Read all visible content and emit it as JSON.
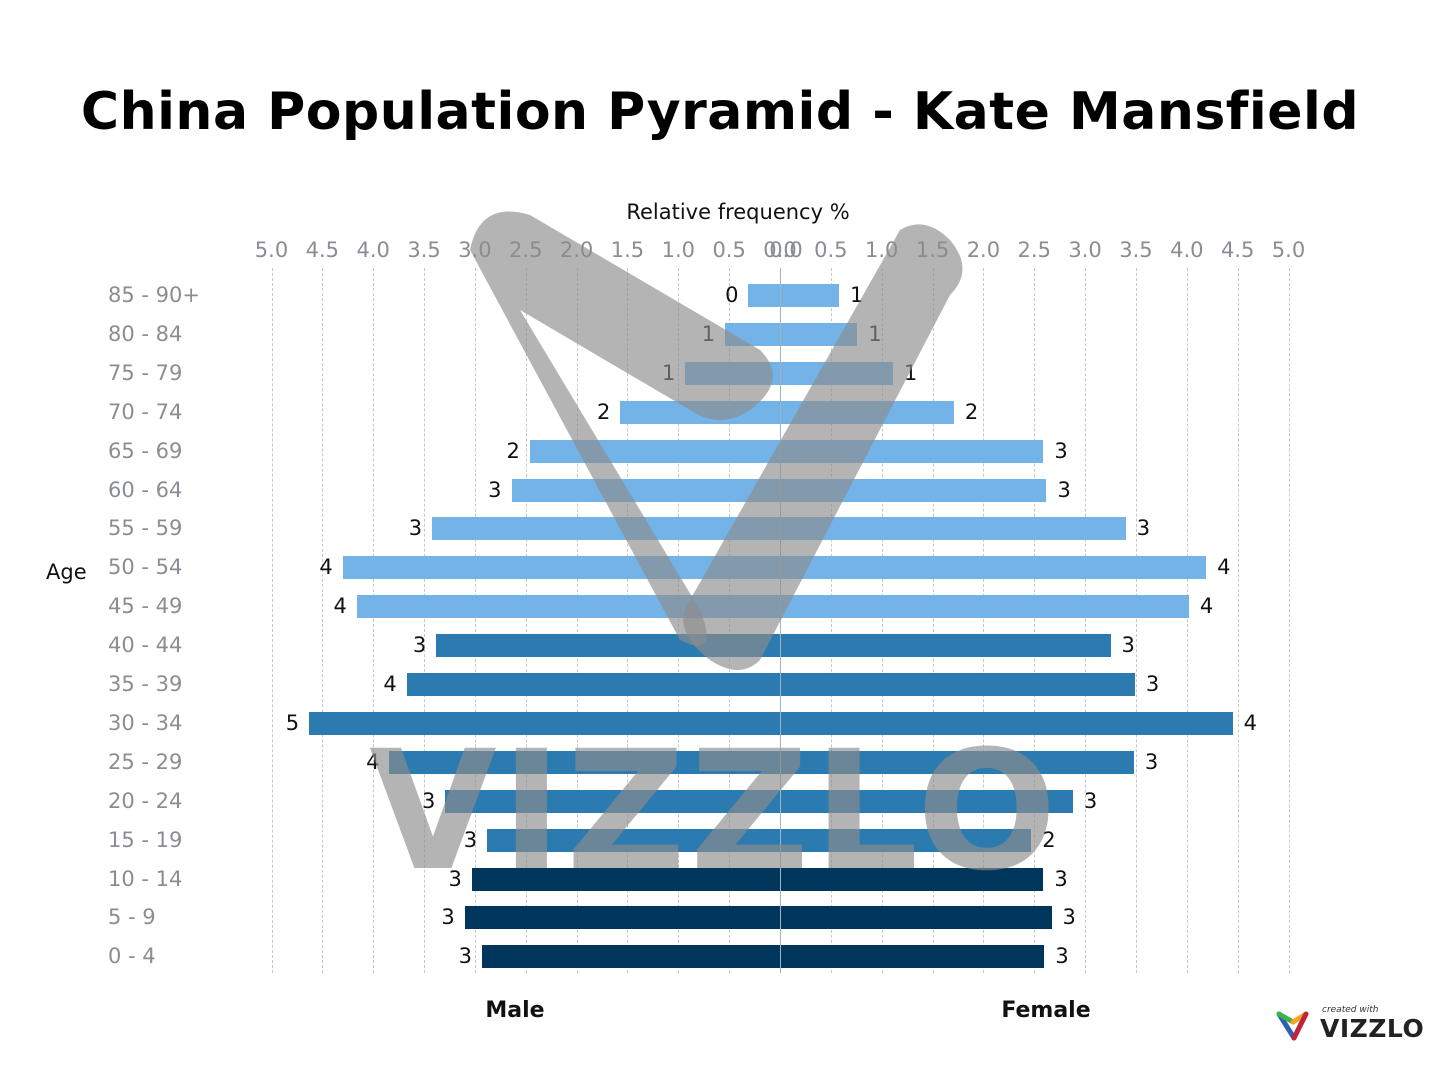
{
  "title": "China Population Pyramid - Kate Mansfield",
  "x_axis_title": "Relative frequency %",
  "y_axis_title": "Age",
  "male_label": "Male",
  "female_label": "Female",
  "branding": {
    "created_with": "created with",
    "name": "VIZZLO"
  },
  "watermark_text": "VIZZLO",
  "colors": {
    "old": "#74b3e8",
    "mid": "#2c7bb0",
    "young": "#00355c",
    "grid": "#c7c7c7",
    "tick": "#8a8d93"
  },
  "chart_data": {
    "type": "bar",
    "orientation": "horizontal-pyramid",
    "title": "China Population Pyramid - Kate Mansfield",
    "xlabel": "Relative frequency %",
    "ylabel": "Age",
    "xlim": [
      -5.0,
      5.0
    ],
    "grid": true,
    "x_ticks_left": [
      "5.0",
      "4.5",
      "4.0",
      "3.5",
      "3.0",
      "2.5",
      "2.0",
      "1.5",
      "1.0",
      "0.5",
      "0.0"
    ],
    "x_ticks_right": [
      "0.0",
      "0.5",
      "1.0",
      "1.5",
      "2.0",
      "2.5",
      "3.0",
      "3.5",
      "4.0",
      "4.5",
      "5.0"
    ],
    "categories": [
      "85 - 90+",
      "80 - 84",
      "75 - 79",
      "70 - 74",
      "65 - 69",
      "60 - 64",
      "55 - 59",
      "50 - 54",
      "45 - 49",
      "40 - 44",
      "35 - 39",
      "30 - 34",
      "25 - 29",
      "20 - 24",
      "15 - 19",
      "10 - 14",
      "5 - 9",
      "0 - 4"
    ],
    "series": [
      {
        "name": "Male",
        "values": [
          0.31,
          0.54,
          0.93,
          1.57,
          2.46,
          2.64,
          3.42,
          4.3,
          4.16,
          3.38,
          3.67,
          4.63,
          3.84,
          3.29,
          2.88,
          3.03,
          3.1,
          2.93
        ],
        "data_labels": [
          "0",
          "1",
          "1",
          "2",
          "2",
          "3",
          "3",
          "4",
          "4",
          "3",
          "4",
          "5",
          "4",
          "3",
          "3",
          "3",
          "3",
          "3"
        ]
      },
      {
        "name": "Female",
        "values": [
          0.58,
          0.76,
          1.11,
          1.71,
          2.59,
          2.62,
          3.4,
          4.19,
          4.02,
          3.25,
          3.49,
          4.45,
          3.48,
          2.88,
          2.47,
          2.59,
          2.67,
          2.6
        ],
        "data_labels": [
          "1",
          "1",
          "1",
          "2",
          "3",
          "3",
          "3",
          "4",
          "4",
          "3",
          "3",
          "4",
          "3",
          "3",
          "2",
          "3",
          "3",
          "3"
        ]
      }
    ],
    "color_groups": [
      "old",
      "old",
      "old",
      "old",
      "old",
      "old",
      "old",
      "old",
      "old",
      "mid",
      "mid",
      "mid",
      "mid",
      "mid",
      "mid",
      "young",
      "young",
      "young"
    ]
  }
}
